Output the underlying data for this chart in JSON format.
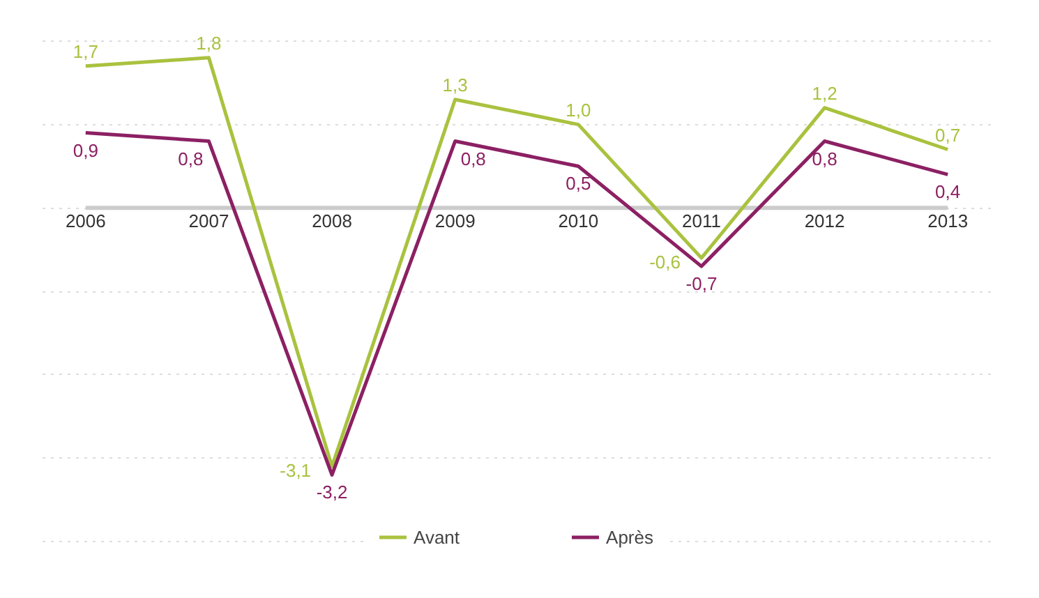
{
  "chart_data": {
    "type": "line",
    "x": [
      2006,
      2007,
      2008,
      2009,
      2010,
      2011,
      2012,
      2013
    ],
    "xlim": [
      2006,
      2013
    ],
    "xticks": [
      2006,
      2007,
      2008,
      2009,
      2010,
      2011,
      2012,
      2013
    ],
    "tick_labels": "x",
    "grid": "y",
    "legend": "bottom",
    "marker": "none",
    "line_style": "solid",
    "series": [
      {
        "name": "Avant",
        "color": "#a9c23f",
        "values": [
          1.7,
          1.8,
          -3.1,
          1.3,
          1.0,
          -0.6,
          1.2,
          0.7
        ],
        "value_labels": [
          "1,7",
          "1,8",
          "-3,1",
          "1,3",
          "1,0",
          "-0,6",
          "1,2",
          "0,7"
        ]
      },
      {
        "name": "Après",
        "color": "#8c2063",
        "values": [
          0.9,
          0.8,
          -3.2,
          0.8,
          0.5,
          -0.7,
          0.8,
          0.4
        ],
        "value_labels": [
          "0,9",
          "0,8",
          "-3,2",
          "0,8",
          "0,5",
          "-0,7",
          "0,8",
          "0,4"
        ]
      }
    ]
  }
}
